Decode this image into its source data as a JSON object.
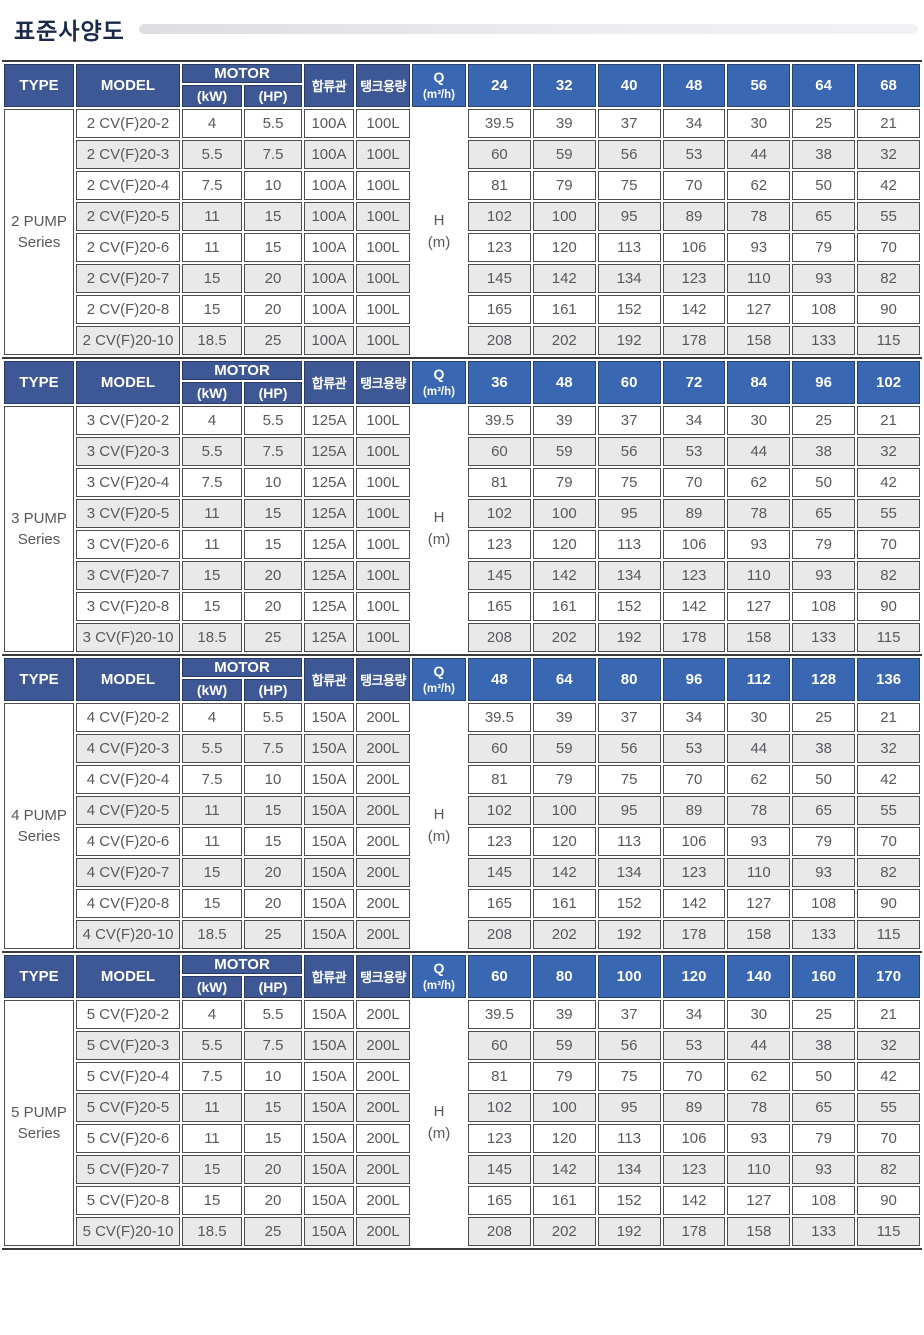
{
  "title": "표준사양도",
  "colors": {
    "header_blue_dark": "#3e5795",
    "header_blue_bright": "#3a67b1",
    "row_stripe": "#e9e9e9",
    "cell_border": "#4e4e4e",
    "title_text": "#1b2a4a"
  },
  "columns": {
    "type": "TYPE",
    "model": "MODEL",
    "motor": "MOTOR",
    "kw": "(kW)",
    "hp": "(HP)",
    "pipe": "합류관",
    "tank": "탱크용량",
    "q_label": "Q",
    "q_unit": "(m³/h)"
  },
  "h": {
    "label": "H",
    "unit": "(m)"
  },
  "sections": [
    {
      "type": "2 PUMP\nSeries",
      "q_values": [
        "24",
        "32",
        "40",
        "48",
        "56",
        "64",
        "68"
      ],
      "rows": [
        {
          "model": "2 CV(F)20-2",
          "kw": "4",
          "hp": "5.5",
          "pipe": "100A",
          "tank": "100L",
          "h": [
            "39.5",
            "39",
            "37",
            "34",
            "30",
            "25",
            "21"
          ]
        },
        {
          "model": "2 CV(F)20-3",
          "kw": "5.5",
          "hp": "7.5",
          "pipe": "100A",
          "tank": "100L",
          "h": [
            "60",
            "59",
            "56",
            "53",
            "44",
            "38",
            "32"
          ]
        },
        {
          "model": "2 CV(F)20-4",
          "kw": "7.5",
          "hp": "10",
          "pipe": "100A",
          "tank": "100L",
          "h": [
            "81",
            "79",
            "75",
            "70",
            "62",
            "50",
            "42"
          ]
        },
        {
          "model": "2 CV(F)20-5",
          "kw": "11",
          "hp": "15",
          "pipe": "100A",
          "tank": "100L",
          "h": [
            "102",
            "100",
            "95",
            "89",
            "78",
            "65",
            "55"
          ]
        },
        {
          "model": "2 CV(F)20-6",
          "kw": "11",
          "hp": "15",
          "pipe": "100A",
          "tank": "100L",
          "h": [
            "123",
            "120",
            "113",
            "106",
            "93",
            "79",
            "70"
          ]
        },
        {
          "model": "2 CV(F)20-7",
          "kw": "15",
          "hp": "20",
          "pipe": "100A",
          "tank": "100L",
          "h": [
            "145",
            "142",
            "134",
            "123",
            "110",
            "93",
            "82"
          ]
        },
        {
          "model": "2 CV(F)20-8",
          "kw": "15",
          "hp": "20",
          "pipe": "100A",
          "tank": "100L",
          "h": [
            "165",
            "161",
            "152",
            "142",
            "127",
            "108",
            "90"
          ]
        },
        {
          "model": "2 CV(F)20-10",
          "kw": "18.5",
          "hp": "25",
          "pipe": "100A",
          "tank": "100L",
          "h": [
            "208",
            "202",
            "192",
            "178",
            "158",
            "133",
            "115"
          ]
        }
      ]
    },
    {
      "type": "3 PUMP\nSeries",
      "q_values": [
        "36",
        "48",
        "60",
        "72",
        "84",
        "96",
        "102"
      ],
      "rows": [
        {
          "model": "3 CV(F)20-2",
          "kw": "4",
          "hp": "5.5",
          "pipe": "125A",
          "tank": "100L",
          "h": [
            "39.5",
            "39",
            "37",
            "34",
            "30",
            "25",
            "21"
          ]
        },
        {
          "model": "3 CV(F)20-3",
          "kw": "5.5",
          "hp": "7.5",
          "pipe": "125A",
          "tank": "100L",
          "h": [
            "60",
            "59",
            "56",
            "53",
            "44",
            "38",
            "32"
          ]
        },
        {
          "model": "3 CV(F)20-4",
          "kw": "7.5",
          "hp": "10",
          "pipe": "125A",
          "tank": "100L",
          "h": [
            "81",
            "79",
            "75",
            "70",
            "62",
            "50",
            "42"
          ]
        },
        {
          "model": "3 CV(F)20-5",
          "kw": "11",
          "hp": "15",
          "pipe": "125A",
          "tank": "100L",
          "h": [
            "102",
            "100",
            "95",
            "89",
            "78",
            "65",
            "55"
          ]
        },
        {
          "model": "3 CV(F)20-6",
          "kw": "11",
          "hp": "15",
          "pipe": "125A",
          "tank": "100L",
          "h": [
            "123",
            "120",
            "113",
            "106",
            "93",
            "79",
            "70"
          ]
        },
        {
          "model": "3 CV(F)20-7",
          "kw": "15",
          "hp": "20",
          "pipe": "125A",
          "tank": "100L",
          "h": [
            "145",
            "142",
            "134",
            "123",
            "110",
            "93",
            "82"
          ]
        },
        {
          "model": "3 CV(F)20-8",
          "kw": "15",
          "hp": "20",
          "pipe": "125A",
          "tank": "100L",
          "h": [
            "165",
            "161",
            "152",
            "142",
            "127",
            "108",
            "90"
          ]
        },
        {
          "model": "3 CV(F)20-10",
          "kw": "18.5",
          "hp": "25",
          "pipe": "125A",
          "tank": "100L",
          "h": [
            "208",
            "202",
            "192",
            "178",
            "158",
            "133",
            "115"
          ]
        }
      ]
    },
    {
      "type": "4 PUMP\nSeries",
      "q_values": [
        "48",
        "64",
        "80",
        "96",
        "112",
        "128",
        "136"
      ],
      "rows": [
        {
          "model": "4 CV(F)20-2",
          "kw": "4",
          "hp": "5.5",
          "pipe": "150A",
          "tank": "200L",
          "h": [
            "39.5",
            "39",
            "37",
            "34",
            "30",
            "25",
            "21"
          ]
        },
        {
          "model": "4 CV(F)20-3",
          "kw": "5.5",
          "hp": "7.5",
          "pipe": "150A",
          "tank": "200L",
          "h": [
            "60",
            "59",
            "56",
            "53",
            "44",
            "38",
            "32"
          ]
        },
        {
          "model": "4 CV(F)20-4",
          "kw": "7.5",
          "hp": "10",
          "pipe": "150A",
          "tank": "200L",
          "h": [
            "81",
            "79",
            "75",
            "70",
            "62",
            "50",
            "42"
          ]
        },
        {
          "model": "4 CV(F)20-5",
          "kw": "11",
          "hp": "15",
          "pipe": "150A",
          "tank": "200L",
          "h": [
            "102",
            "100",
            "95",
            "89",
            "78",
            "65",
            "55"
          ]
        },
        {
          "model": "4 CV(F)20-6",
          "kw": "11",
          "hp": "15",
          "pipe": "150A",
          "tank": "200L",
          "h": [
            "123",
            "120",
            "113",
            "106",
            "93",
            "79",
            "70"
          ]
        },
        {
          "model": "4 CV(F)20-7",
          "kw": "15",
          "hp": "20",
          "pipe": "150A",
          "tank": "200L",
          "h": [
            "145",
            "142",
            "134",
            "123",
            "110",
            "93",
            "82"
          ]
        },
        {
          "model": "4 CV(F)20-8",
          "kw": "15",
          "hp": "20",
          "pipe": "150A",
          "tank": "200L",
          "h": [
            "165",
            "161",
            "152",
            "142",
            "127",
            "108",
            "90"
          ]
        },
        {
          "model": "4 CV(F)20-10",
          "kw": "18.5",
          "hp": "25",
          "pipe": "150A",
          "tank": "200L",
          "h": [
            "208",
            "202",
            "192",
            "178",
            "158",
            "133",
            "115"
          ]
        }
      ]
    },
    {
      "type": "5 PUMP\nSeries",
      "q_values": [
        "60",
        "80",
        "100",
        "120",
        "140",
        "160",
        "170"
      ],
      "rows": [
        {
          "model": "5 CV(F)20-2",
          "kw": "4",
          "hp": "5.5",
          "pipe": "150A",
          "tank": "200L",
          "h": [
            "39.5",
            "39",
            "37",
            "34",
            "30",
            "25",
            "21"
          ]
        },
        {
          "model": "5 CV(F)20-3",
          "kw": "5.5",
          "hp": "7.5",
          "pipe": "150A",
          "tank": "200L",
          "h": [
            "60",
            "59",
            "56",
            "53",
            "44",
            "38",
            "32"
          ]
        },
        {
          "model": "5 CV(F)20-4",
          "kw": "7.5",
          "hp": "10",
          "pipe": "150A",
          "tank": "200L",
          "h": [
            "81",
            "79",
            "75",
            "70",
            "62",
            "50",
            "42"
          ]
        },
        {
          "model": "5 CV(F)20-5",
          "kw": "11",
          "hp": "15",
          "pipe": "150A",
          "tank": "200L",
          "h": [
            "102",
            "100",
            "95",
            "89",
            "78",
            "65",
            "55"
          ]
        },
        {
          "model": "5 CV(F)20-6",
          "kw": "11",
          "hp": "15",
          "pipe": "150A",
          "tank": "200L",
          "h": [
            "123",
            "120",
            "113",
            "106",
            "93",
            "79",
            "70"
          ]
        },
        {
          "model": "5 CV(F)20-7",
          "kw": "15",
          "hp": "20",
          "pipe": "150A",
          "tank": "200L",
          "h": [
            "145",
            "142",
            "134",
            "123",
            "110",
            "93",
            "82"
          ]
        },
        {
          "model": "5 CV(F)20-8",
          "kw": "15",
          "hp": "20",
          "pipe": "150A",
          "tank": "200L",
          "h": [
            "165",
            "161",
            "152",
            "142",
            "127",
            "108",
            "90"
          ]
        },
        {
          "model": "5 CV(F)20-10",
          "kw": "18.5",
          "hp": "25",
          "pipe": "150A",
          "tank": "200L",
          "h": [
            "208",
            "202",
            "192",
            "178",
            "158",
            "133",
            "115"
          ]
        }
      ]
    }
  ]
}
